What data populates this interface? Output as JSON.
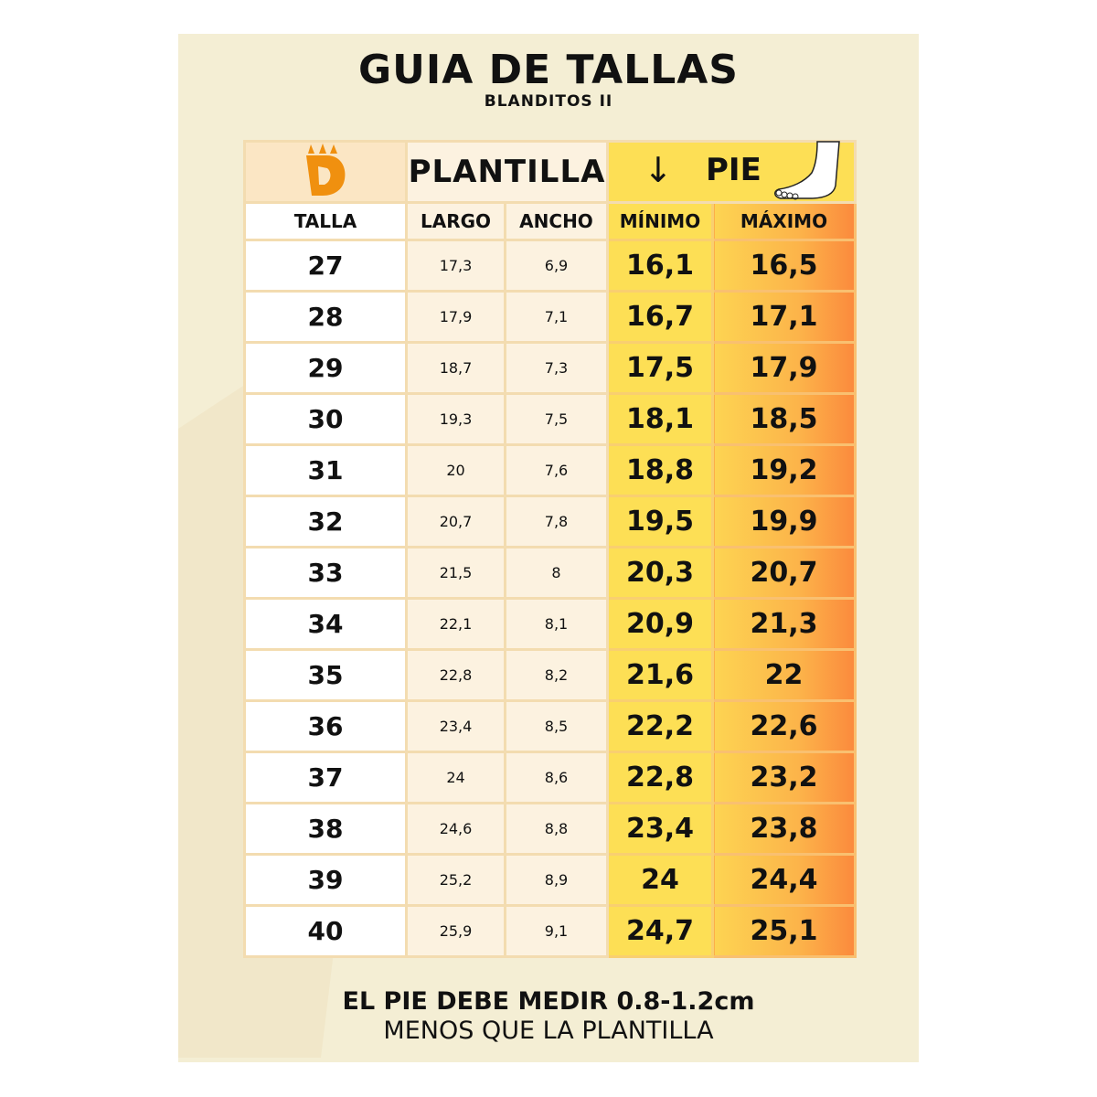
{
  "title": "GUIA DE TALLAS",
  "subtitle": "BLANDITOS II",
  "header": {
    "logo": "D",
    "plantilla": "PLANTILLA",
    "pie": "PIE",
    "arrow_icon": "arrow-down",
    "foot_icon": "foot"
  },
  "columns": [
    "TALLA",
    "LARGO",
    "ANCHO",
    "MÍNIMO",
    "MÁXIMO"
  ],
  "rows": [
    [
      "27",
      "17,3",
      "6,9",
      "16,1",
      "16,5"
    ],
    [
      "28",
      "17,9",
      "7,1",
      "16,7",
      "17,1"
    ],
    [
      "29",
      "18,7",
      "7,3",
      "17,5",
      "17,9"
    ],
    [
      "30",
      "19,3",
      "7,5",
      "18,1",
      "18,5"
    ],
    [
      "31",
      "20",
      "7,6",
      "18,8",
      "19,2"
    ],
    [
      "32",
      "20,7",
      "7,8",
      "19,5",
      "19,9"
    ],
    [
      "33",
      "21,5",
      "8",
      "20,3",
      "20,7"
    ],
    [
      "34",
      "22,1",
      "8,1",
      "20,9",
      "21,3"
    ],
    [
      "35",
      "22,8",
      "8,2",
      "21,6",
      "22"
    ],
    [
      "36",
      "23,4",
      "8,5",
      "22,2",
      "22,6"
    ],
    [
      "37",
      "24",
      "8,6",
      "22,8",
      "23,2"
    ],
    [
      "38",
      "24,6",
      "8,8",
      "23,4",
      "23,8"
    ],
    [
      "39",
      "25,2",
      "8,9",
      "24",
      "24,4"
    ],
    [
      "40",
      "25,9",
      "9,1",
      "24,7",
      "25,1"
    ]
  ],
  "note": {
    "line1": "EL PIE DEBE MEDIR 0.8-1.2cm",
    "line2": "MENOS QUE LA PLANTILLA"
  },
  "colors": {
    "background": "#f4eed4",
    "yellow": "#fddf55",
    "orange": "#fb8a3d",
    "logo": "#f0900f"
  }
}
